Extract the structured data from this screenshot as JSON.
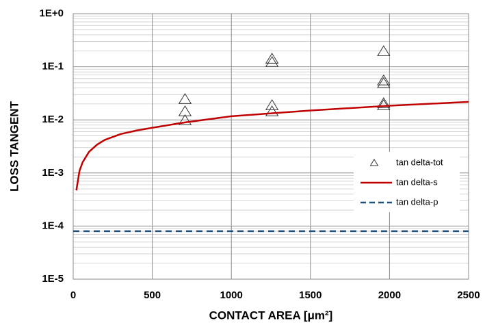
{
  "chart_data": {
    "type": "mixed",
    "x_label": "CONTACT AREA [μm²]",
    "y_label": "LOSS TANGENT",
    "xlim": [
      0,
      2500
    ],
    "xticks": [
      0,
      500,
      1000,
      1500,
      2000,
      2500
    ],
    "ylim": [
      1e-05,
      1
    ],
    "y_scale": "log",
    "yticks": [
      {
        "value": 1e-05,
        "label": "1E-5"
      },
      {
        "value": 0.0001,
        "label": "1E-4"
      },
      {
        "value": 0.001,
        "label": "1E-3"
      },
      {
        "value": 0.01,
        "label": "1E-2"
      },
      {
        "value": 0.1,
        "label": "1E-1"
      },
      {
        "value": 1,
        "label": "1E+0"
      }
    ],
    "grid": true,
    "legend": "center right",
    "series": [
      {
        "name": "tan delta-tot",
        "type": "scatter",
        "color": "#333333",
        "x": [
          707,
          707,
          707,
          1257,
          1257,
          1257,
          1257,
          1963,
          1963,
          1963,
          1963,
          1963
        ],
        "values": [
          0.0245,
          0.0144,
          0.0098,
          0.141,
          0.122,
          0.0188,
          0.0144,
          0.195,
          0.055,
          0.049,
          0.0205,
          0.0188
        ]
      },
      {
        "name": "tan delta-s",
        "type": "line",
        "color": "#c00000",
        "x": [
          20,
          40,
          60,
          100,
          150,
          200,
          300,
          400,
          500,
          700,
          1000,
          1500,
          2000,
          2500
        ],
        "values": [
          0.00047,
          0.0011,
          0.0016,
          0.0025,
          0.0034,
          0.0042,
          0.0054,
          0.0063,
          0.0071,
          0.0089,
          0.0117,
          0.015,
          0.0185,
          0.0218
        ]
      },
      {
        "name": "tan delta-p",
        "type": "dashed-line",
        "color": "#1f4e79",
        "x": [
          0,
          2500
        ],
        "values": [
          8e-05,
          8e-05
        ]
      }
    ]
  }
}
